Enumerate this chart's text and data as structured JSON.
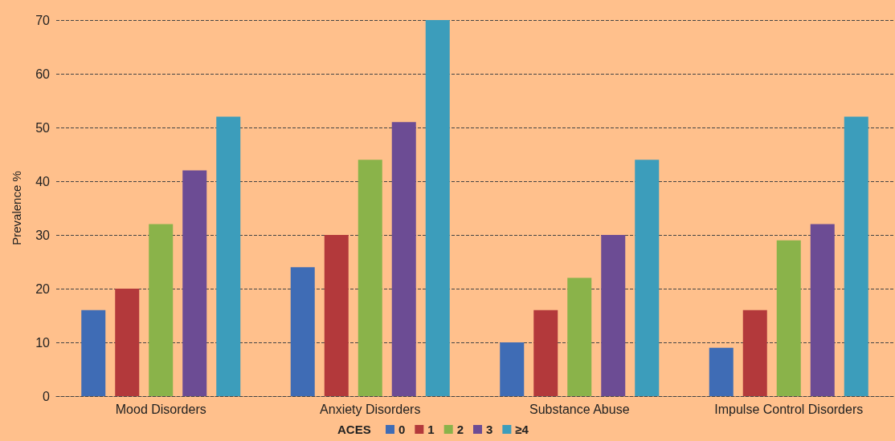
{
  "chart_data": {
    "type": "bar",
    "ylabel": "Prevalence %",
    "legend_title": "ACES",
    "categories": [
      "Mood Disorders",
      "Anxiety Disorders",
      "Substance Abuse",
      "Impulse Control Disorders"
    ],
    "series": [
      {
        "name": "0",
        "color": "#3f6cb5",
        "values": [
          16,
          24,
          10,
          9
        ]
      },
      {
        "name": "1",
        "color": "#b3393b",
        "values": [
          20,
          30,
          16,
          16
        ]
      },
      {
        "name": "2",
        "color": "#8ab34a",
        "values": [
          32,
          44,
          22,
          29
        ]
      },
      {
        "name": "3",
        "color": "#6c4c94",
        "values": [
          42,
          51,
          30,
          32
        ]
      },
      {
        "name": "≥4",
        "color": "#3c9dbb",
        "values": [
          52,
          70,
          44,
          52
        ]
      }
    ],
    "ylim": [
      0,
      70
    ],
    "yticks": [
      0,
      10,
      20,
      30,
      40,
      50,
      60,
      70
    ],
    "grid": "y",
    "legend": "bottom"
  }
}
